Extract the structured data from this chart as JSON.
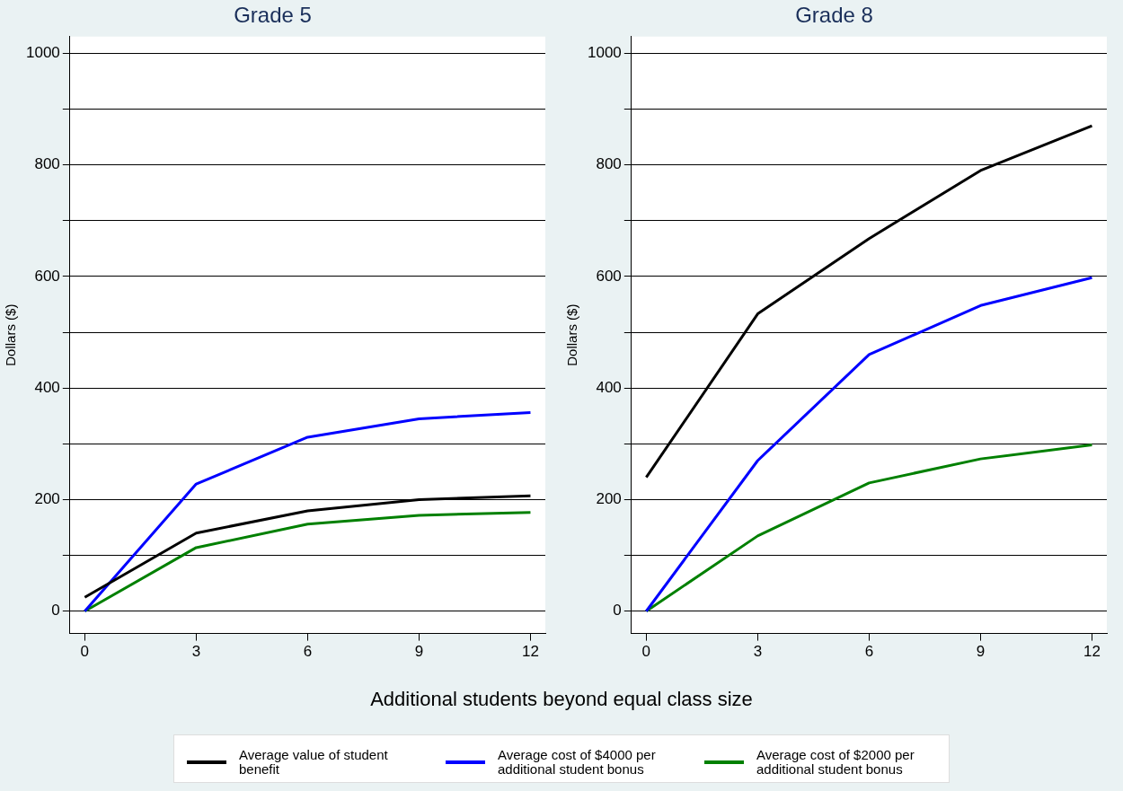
{
  "chart_data": [
    {
      "type": "line",
      "title": "Grade 5",
      "ylabel": "Dollars ($)",
      "xlabel": "Additional students beyond equal class size",
      "x": [
        0,
        3,
        6,
        9,
        12
      ],
      "xlim": [
        -0.4,
        12.4
      ],
      "xticks": [
        0,
        3,
        6,
        9,
        12
      ],
      "ylim": [
        -40,
        1030
      ],
      "yticks": [
        0,
        {
          "value": 100,
          "label": null
        },
        200,
        {
          "value": 300,
          "label": null
        },
        400,
        {
          "value": 500,
          "label": null
        },
        600,
        {
          "value": 700,
          "label": null
        },
        800,
        {
          "value": 900,
          "label": null
        },
        1000
      ],
      "grid": "y",
      "legend": "bottom",
      "marker": "none",
      "line_style": "solid",
      "series": [
        {
          "name": "Average value of student benefit",
          "color": "#000000",
          "values": [
            25,
            140,
            180,
            200,
            207
          ]
        },
        {
          "name": "Average cost of $4000 per additional student bonus",
          "color": "#0000ff",
          "values": [
            0,
            228,
            312,
            345,
            356
          ]
        },
        {
          "name": "Average cost of $2000 per additional student bonus",
          "color": "#008000",
          "values": [
            0,
            114,
            156,
            172,
            177
          ]
        }
      ]
    },
    {
      "type": "line",
      "title": "Grade 8",
      "ylabel": "Dollars ($)",
      "x": [
        0,
        3,
        6,
        9,
        12
      ],
      "xlim": [
        -0.4,
        12.4
      ],
      "xticks": [
        0,
        3,
        6,
        9,
        12
      ],
      "ylim": [
        -40,
        1030
      ],
      "yticks": [
        0,
        {
          "value": 100,
          "label": null
        },
        200,
        {
          "value": 300,
          "label": null
        },
        400,
        {
          "value": 500,
          "label": null
        },
        600,
        {
          "value": 700,
          "label": null
        },
        800,
        {
          "value": 900,
          "label": null
        },
        1000
      ],
      "grid": "y",
      "marker": "none",
      "line_style": "solid",
      "series": [
        {
          "color": "#000000",
          "values": [
            240,
            533,
            668,
            790,
            870
          ]
        },
        {
          "color": "#0000ff",
          "values": [
            0,
            270,
            460,
            548,
            598
          ]
        },
        {
          "color": "#008000",
          "values": [
            0,
            135,
            230,
            273,
            298
          ]
        }
      ]
    }
  ]
}
